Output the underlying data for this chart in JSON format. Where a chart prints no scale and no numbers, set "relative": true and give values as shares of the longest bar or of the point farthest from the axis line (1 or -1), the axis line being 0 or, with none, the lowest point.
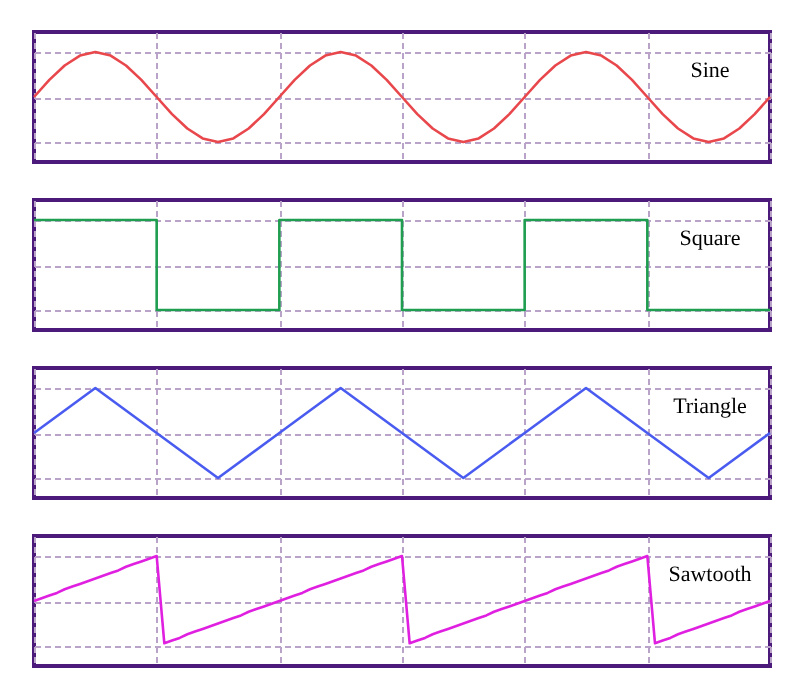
{
  "chart_data": [
    {
      "type": "line",
      "relative": true,
      "grid": true,
      "categories": [
        null,
        null,
        null,
        null,
        null,
        null,
        null,
        null,
        null,
        null,
        null,
        null,
        null,
        null,
        null,
        null,
        null,
        null,
        null,
        null,
        null,
        null,
        null,
        null,
        null,
        null,
        null,
        null,
        null,
        null,
        null,
        null,
        null,
        null,
        null,
        null,
        null,
        null,
        null,
        null,
        null,
        null,
        null,
        null,
        null,
        null,
        null,
        null,
        null
      ],
      "series": [
        {
          "name": "Sine",
          "color": "#e8474c",
          "values": [
            0.5,
            0.69,
            0.85,
            0.96,
            1,
            0.96,
            0.85,
            0.69,
            0.5,
            0.31,
            0.15,
            0.04,
            0,
            0.04,
            0.15,
            0.31,
            0.5,
            0.69,
            0.85,
            0.96,
            1,
            0.96,
            0.85,
            0.69,
            0.5,
            0.31,
            0.15,
            0.04,
            0,
            0.04,
            0.15,
            0.31,
            0.5,
            0.69,
            0.85,
            0.96,
            1,
            0.96,
            0.85,
            0.69,
            0.5,
            0.31,
            0.15,
            0.04,
            0,
            0.04,
            0.15,
            0.31,
            0.5
          ]
        }
      ]
    },
    {
      "type": "step",
      "relative": true,
      "grid": true,
      "categories": [
        null,
        null,
        null,
        null,
        null,
        null,
        null
      ],
      "series": [
        {
          "name": "Square",
          "color": "#1f9e50",
          "values": [
            1,
            0,
            1,
            0,
            1,
            0,
            0
          ]
        }
      ]
    },
    {
      "type": "line",
      "relative": true,
      "grid": true,
      "categories": [
        null,
        null,
        null,
        null,
        null,
        null,
        null,
        null,
        null,
        null,
        null,
        null,
        null
      ],
      "series": [
        {
          "name": "Triangle",
          "color": "#4a5cf0",
          "values": [
            0.5,
            1,
            0.5,
            0,
            0.5,
            1,
            0.5,
            0,
            0.5,
            1,
            0.5,
            0,
            0.5
          ]
        }
      ]
    },
    {
      "type": "line",
      "relative": true,
      "grid": true,
      "categories": [
        null,
        null,
        null,
        null,
        null,
        null,
        null,
        null,
        null,
        null,
        null,
        null,
        null,
        null,
        null,
        null,
        null,
        null,
        null,
        null,
        null,
        null,
        null,
        null,
        null,
        null,
        null,
        null,
        null,
        null,
        null,
        null,
        null,
        null,
        null,
        null,
        null,
        null,
        null,
        null,
        null,
        null,
        null,
        null,
        null,
        null,
        null,
        null,
        null,
        null,
        null,
        null,
        null,
        null,
        null,
        null,
        null,
        null,
        null,
        null,
        null,
        null,
        null,
        null,
        null,
        null,
        null,
        null,
        null,
        null,
        null,
        null,
        null,
        null,
        null,
        null,
        null,
        null,
        null,
        null,
        null,
        null,
        null,
        null,
        null,
        null,
        null,
        null,
        null,
        null,
        null,
        null,
        null,
        null,
        null,
        null,
        null
      ],
      "series": [
        {
          "name": "Sawtooth",
          "color": "#e020e0",
          "values": [
            0.5,
            0.53,
            0.56,
            0.59,
            0.63,
            0.66,
            0.69,
            0.72,
            0.75,
            0.78,
            0.81,
            0.84,
            0.88,
            0.91,
            0.94,
            0.97,
            1,
            0.03,
            0.06,
            0.09,
            0.13,
            0.16,
            0.19,
            0.22,
            0.25,
            0.28,
            0.31,
            0.34,
            0.38,
            0.41,
            0.44,
            0.47,
            0.5,
            0.53,
            0.56,
            0.59,
            0.63,
            0.66,
            0.69,
            0.72,
            0.75,
            0.78,
            0.81,
            0.84,
            0.88,
            0.91,
            0.94,
            0.97,
            1,
            0.03,
            0.06,
            0.09,
            0.13,
            0.16,
            0.19,
            0.22,
            0.25,
            0.28,
            0.31,
            0.34,
            0.38,
            0.41,
            0.44,
            0.47,
            0.5,
            0.53,
            0.56,
            0.59,
            0.63,
            0.66,
            0.69,
            0.72,
            0.75,
            0.78,
            0.81,
            0.84,
            0.88,
            0.91,
            0.94,
            0.97,
            1,
            0.03,
            0.06,
            0.09,
            0.13,
            0.16,
            0.19,
            0.22,
            0.25,
            0.28,
            0.31,
            0.34,
            0.38,
            0.41,
            0.44,
            0.47,
            0.5
          ]
        }
      ]
    }
  ]
}
